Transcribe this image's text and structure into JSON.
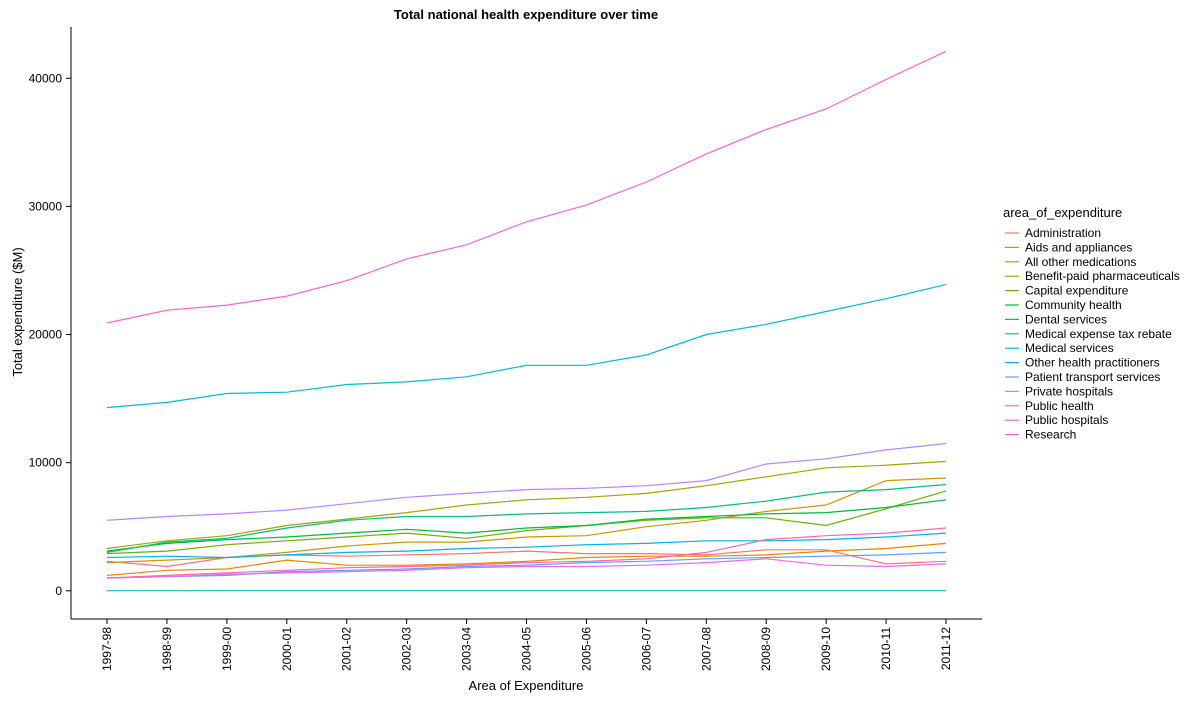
{
  "chart_data": {
    "type": "line",
    "title": "Total national health expenditure over time",
    "xlabel": "Area of Expenditure",
    "ylabel": "Total expenditure ($M)",
    "ylim": [
      -2200,
      44000
    ],
    "yticks": [
      0,
      10000,
      20000,
      30000,
      40000
    ],
    "grid": false,
    "legend_position": "right",
    "legend_title": "area_of_expenditure",
    "x": [
      "1997-98",
      "1998-99",
      "1999-00",
      "2000-01",
      "2001-02",
      "2002-03",
      "2003-04",
      "2004-05",
      "2005-06",
      "2006-07",
      "2007-08",
      "2008-09",
      "2009-10",
      "2010-11",
      "2011-12"
    ],
    "series": [
      {
        "name": "Administration",
        "color": "#F8766D",
        "values": [
          2300,
          1900,
          2600,
          2800,
          2700,
          2800,
          2900,
          3100,
          2900,
          2900,
          2800,
          3200,
          3200,
          2100,
          2300
        ]
      },
      {
        "name": "Aids and appliances",
        "color": "#E58700",
        "values": [
          1200,
          1600,
          1700,
          2400,
          2000,
          2000,
          2100,
          2300,
          2600,
          2700,
          2700,
          2800,
          3100,
          3300,
          3700
        ]
      },
      {
        "name": "All other medications",
        "color": "#C99800",
        "values": [
          2200,
          2400,
          2600,
          3000,
          3500,
          3800,
          3800,
          4200,
          4300,
          5000,
          5500,
          6200,
          6700,
          8600,
          8800
        ]
      },
      {
        "name": "Benefit-paid pharmaceuticals",
        "color": "#A3A500",
        "values": [
          3300,
          3900,
          4300,
          5100,
          5600,
          6100,
          6700,
          7100,
          7300,
          7600,
          8200,
          8900,
          9600,
          9800,
          10100
        ]
      },
      {
        "name": "Capital expenditure",
        "color": "#6BB100",
        "values": [
          2900,
          3100,
          3600,
          3900,
          4200,
          4500,
          4100,
          4700,
          5100,
          5500,
          5700,
          5700,
          5100,
          6400,
          7800
        ]
      },
      {
        "name": "Community health",
        "color": "#00BA38",
        "values": [
          3100,
          3700,
          4000,
          4200,
          4500,
          4800,
          4500,
          4900,
          5100,
          5600,
          5800,
          6000,
          6100,
          6500,
          7100
        ]
      },
      {
        "name": "Dental services",
        "color": "#00BF7D",
        "values": [
          3000,
          3800,
          4100,
          4900,
          5500,
          5800,
          5800,
          6000,
          6100,
          6200,
          6500,
          7000,
          7700,
          7900,
          8300
        ]
      },
      {
        "name": "Medical expense tax rebate",
        "color": "#00C0AF",
        "values": [
          10,
          10,
          10,
          10,
          10,
          10,
          10,
          10,
          10,
          10,
          10,
          10,
          10,
          10,
          10
        ]
      },
      {
        "name": "Medical services",
        "color": "#00BCD8",
        "values": [
          14300,
          14700,
          15400,
          15500,
          16100,
          16300,
          16700,
          17600,
          17600,
          18400,
          20000,
          20800,
          21800,
          22800,
          23900
        ]
      },
      {
        "name": "Other health practitioners",
        "color": "#00B0F6",
        "values": [
          2600,
          2700,
          2600,
          2800,
          3000,
          3100,
          3300,
          3400,
          3600,
          3700,
          3900,
          3900,
          4000,
          4200,
          4500
        ]
      },
      {
        "name": "Patient transport services",
        "color": "#619CFF",
        "values": [
          1000,
          1100,
          1200,
          1500,
          1600,
          1700,
          1900,
          2000,
          2200,
          2300,
          2500,
          2600,
          2700,
          2800,
          3000
        ]
      },
      {
        "name": "Private hospitals",
        "color": "#B983FF",
        "values": [
          5500,
          5800,
          6000,
          6300,
          6800,
          7300,
          7600,
          7900,
          8000,
          8200,
          8600,
          9900,
          10300,
          11000,
          11500
        ]
      },
      {
        "name": "Public health",
        "color": "#E76BF3",
        "values": [
          1000,
          1100,
          1300,
          1400,
          1500,
          1600,
          1800,
          1900,
          1900,
          2000,
          2200,
          2500,
          2000,
          1900,
          2100
        ]
      },
      {
        "name": "Public hospitals",
        "color": "#FD61D1",
        "values": [
          20900,
          21900,
          22300,
          23000,
          24200,
          25900,
          27000,
          28800,
          30100,
          31900,
          34100,
          36000,
          37600,
          39900,
          42100
        ]
      },
      {
        "name": "Research",
        "color": "#FF67A4",
        "values": [
          1000,
          1200,
          1400,
          1600,
          1800,
          1900,
          2000,
          2200,
          2300,
          2500,
          3000,
          4000,
          4300,
          4500,
          4900
        ]
      }
    ]
  }
}
